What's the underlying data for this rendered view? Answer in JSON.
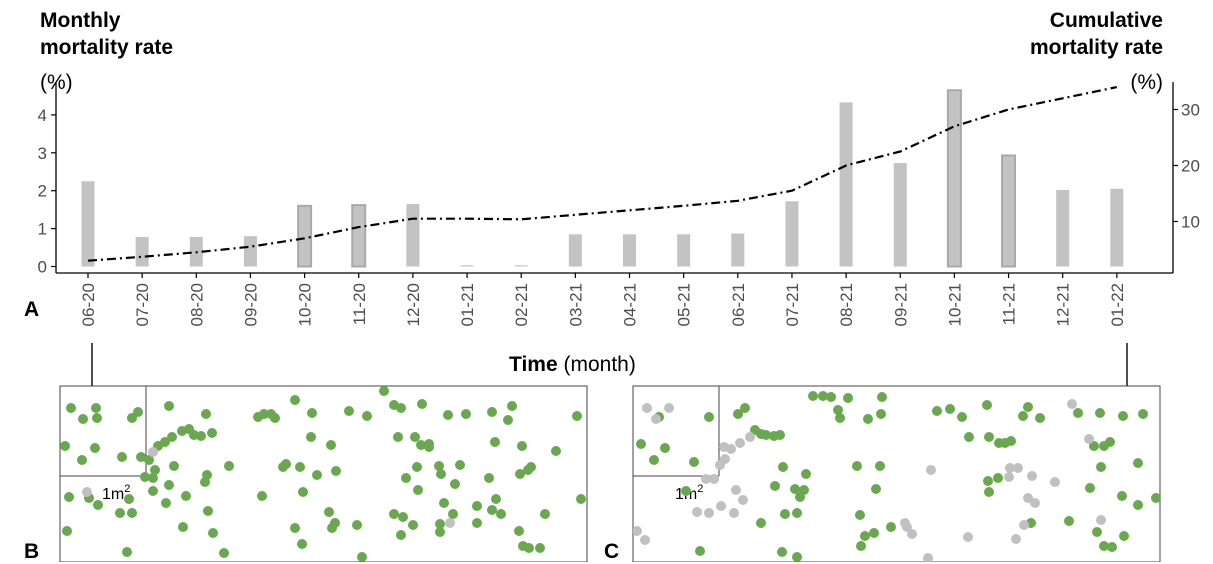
{
  "figure": {
    "left_title_line1": "Monthly",
    "left_title_line2": "mortality rate",
    "left_unit": "(%)",
    "right_title_line1": "Cumulative",
    "right_title_line2": "mortality rate",
    "right_unit": "(%)",
    "xaxis_title_bold": "Time",
    "xaxis_title_rest": " (month)",
    "panel_a": "A",
    "panel_b": "B",
    "panel_c": "C",
    "quadrat_label": "1m",
    "quadrat_sup": "2"
  },
  "colors": {
    "bar_fill": "#c3c3c3",
    "bar_outline": "#a9a9a9",
    "line": "#000000",
    "alive": "#6aa84f",
    "dead": "#c0c0c0",
    "tick_text": "#4d4d4d"
  },
  "chart_data": {
    "type": "bar",
    "categories": [
      "06-20",
      "07-20",
      "08-20",
      "09-20",
      "10-20",
      "11-20",
      "12-20",
      "01-21",
      "02-21",
      "03-21",
      "04-21",
      "05-21",
      "06-21",
      "07-21",
      "08-21",
      "09-21",
      "10-21",
      "11-21",
      "12-21",
      "01-22"
    ],
    "series": [
      {
        "type": "bar",
        "axis": "left",
        "values": [
          2.25,
          0.78,
          0.78,
          0.8,
          1.6,
          1.62,
          1.65,
          0.03,
          0.03,
          0.85,
          0.85,
          0.85,
          0.87,
          1.72,
          4.33,
          2.73,
          4.65,
          2.93,
          2.02,
          2.05
        ]
      },
      {
        "type": "line",
        "axis": "right",
        "style": "dash-dot",
        "values": [
          3,
          3.7,
          4.5,
          5.5,
          7,
          9,
          10.5,
          10.5,
          10.4,
          11.2,
          12,
          12.8,
          13.7,
          15.5,
          20,
          22.5,
          27,
          30,
          32,
          34
        ]
      }
    ],
    "outlined_bars": [
      "10-20",
      "11-20",
      "10-21",
      "11-21"
    ],
    "ylim_left": [
      0,
      4.7
    ],
    "yticks_left": [
      0,
      1,
      2,
      3,
      4
    ],
    "ylim_right": [
      1.3,
      34.8
    ],
    "yticks_right": [
      10,
      20,
      30
    ],
    "grid": false,
    "legend": "none"
  },
  "maps": {
    "panel_b": {
      "alive": [
        [
          71,
          408
        ],
        [
          83,
          419
        ],
        [
          96,
          408
        ],
        [
          97,
          418
        ],
        [
          65,
          446
        ],
        [
          82,
          460
        ],
        [
          95,
          448
        ],
        [
          122,
          457
        ],
        [
          69,
          497
        ],
        [
          89,
          498
        ],
        [
          98,
          505
        ],
        [
          120,
          513
        ],
        [
          132,
          513
        ],
        [
          129,
          499
        ],
        [
          141,
          457
        ],
        [
          145,
          477
        ],
        [
          132,
          418
        ],
        [
          138,
          412
        ],
        [
          127,
          552
        ],
        [
          67,
          531
        ],
        [
          153,
          478
        ],
        [
          155,
          470
        ],
        [
          153,
          491
        ],
        [
          149,
          460
        ],
        [
          169,
          406
        ],
        [
          158,
          446
        ],
        [
          165,
          442
        ],
        [
          172,
          437
        ],
        [
          182,
          431
        ],
        [
          189,
          429
        ],
        [
          194,
          435
        ],
        [
          206,
          414
        ],
        [
          212,
          433
        ],
        [
          201,
          436
        ],
        [
          174,
          466
        ],
        [
          169,
          485
        ],
        [
          166,
          503
        ],
        [
          186,
          496
        ],
        [
          183,
          527
        ],
        [
          208,
          511
        ],
        [
          205,
          482
        ],
        [
          213,
          533
        ],
        [
          224,
          553
        ],
        [
          229,
          466
        ],
        [
          207,
          475
        ],
        [
          264,
          414
        ],
        [
          258,
          417
        ],
        [
          271,
          414
        ],
        [
          275,
          418
        ],
        [
          295,
          400
        ],
        [
          312,
          413
        ],
        [
          300,
          467
        ],
        [
          283,
          467
        ],
        [
          286,
          464
        ],
        [
          303,
          492
        ],
        [
          262,
          496
        ],
        [
          317,
          475
        ],
        [
          311,
          437
        ],
        [
          331,
          445
        ],
        [
          336,
          471
        ],
        [
          329,
          512
        ],
        [
          335,
          523
        ],
        [
          332,
          528
        ],
        [
          295,
          528
        ],
        [
          302,
          544
        ],
        [
          349,
          411
        ],
        [
          367,
          416
        ],
        [
          384,
          391
        ],
        [
          394,
          405
        ],
        [
          357,
          525
        ],
        [
          362,
          557
        ],
        [
          401,
          408
        ],
        [
          422,
          404
        ],
        [
          398,
          437
        ],
        [
          415,
          437
        ],
        [
          429,
          447
        ],
        [
          421,
          445
        ],
        [
          429,
          444
        ],
        [
          448,
          415
        ],
        [
          466,
          414
        ],
        [
          417,
          467
        ],
        [
          406,
          478
        ],
        [
          418,
          490
        ],
        [
          439,
          466
        ],
        [
          441,
          474
        ],
        [
          444,
          503
        ],
        [
          403,
          517
        ],
        [
          401,
          535
        ],
        [
          394,
          514
        ],
        [
          413,
          525
        ],
        [
          460,
          465
        ],
        [
          455,
          484
        ],
        [
          453,
          514
        ],
        [
          440,
          524
        ],
        [
          440,
          532
        ],
        [
          492,
          412
        ],
        [
          512,
          406
        ],
        [
          508,
          420
        ],
        [
          495,
          442
        ],
        [
          522,
          446
        ],
        [
          520,
          474
        ],
        [
          528,
          470
        ],
        [
          531,
          467
        ],
        [
          489,
          478
        ],
        [
          496,
          499
        ],
        [
          492,
          510
        ],
        [
          501,
          514
        ],
        [
          477,
          506
        ],
        [
          477,
          523
        ],
        [
          519,
          531
        ],
        [
          523,
          546
        ],
        [
          529,
          548
        ],
        [
          540,
          548
        ],
        [
          545,
          514
        ],
        [
          556,
          451
        ],
        [
          577,
          416
        ],
        [
          581,
          499
        ]
      ],
      "dead": [
        [
          87,
          492
        ],
        [
          153,
          452
        ],
        [
          450,
          523
        ]
      ]
    },
    "panel_c": {
      "alive": [
        [
          641,
          444
        ],
        [
          654,
          460
        ],
        [
          665,
          448
        ],
        [
          659,
          417
        ],
        [
          709,
          417
        ],
        [
          694,
          462
        ],
        [
          686,
          491
        ],
        [
          700,
          551
        ],
        [
          745,
          408
        ],
        [
          738,
          414
        ],
        [
          755,
          430
        ],
        [
          766,
          435
        ],
        [
          774,
          436
        ],
        [
          761,
          434
        ],
        [
          780,
          435
        ],
        [
          813,
          396
        ],
        [
          823,
          396
        ],
        [
          831,
          397
        ],
        [
          840,
          418
        ],
        [
          838,
          410
        ],
        [
          848,
          398
        ],
        [
          868,
          419
        ],
        [
          882,
          397
        ],
        [
          881,
          414
        ],
        [
          783,
          467
        ],
        [
          775,
          486
        ],
        [
          795,
          489
        ],
        [
          806,
          474
        ],
        [
          804,
          490
        ],
        [
          800,
          497
        ],
        [
          785,
          514
        ],
        [
          797,
          513
        ],
        [
          761,
          523
        ],
        [
          782,
          552
        ],
        [
          797,
          557
        ],
        [
          857,
          466
        ],
        [
          880,
          466
        ],
        [
          860,
          515
        ],
        [
          876,
          489
        ],
        [
          891,
          527
        ],
        [
          874,
          533
        ],
        [
          865,
          536
        ],
        [
          861,
          546
        ],
        [
          937,
          411
        ],
        [
          950,
          409
        ],
        [
          962,
          417
        ],
        [
          987,
          405
        ],
        [
          969,
          437
        ],
        [
          989,
          437
        ],
        [
          999,
          443
        ],
        [
          1005,
          443
        ],
        [
          1011,
          441
        ],
        [
          988,
          481
        ],
        [
          989,
          492
        ],
        [
          998,
          478
        ],
        [
          1023,
          416
        ],
        [
          1028,
          407
        ],
        [
          1040,
          418
        ],
        [
          1078,
          413
        ],
        [
          1100,
          413
        ],
        [
          1123,
          416
        ],
        [
          1143,
          414
        ],
        [
          1094,
          446
        ],
        [
          1104,
          446
        ],
        [
          1110,
          442
        ],
        [
          1138,
          463
        ],
        [
          1101,
          467
        ],
        [
          1090,
          488
        ],
        [
          1122,
          496
        ],
        [
          1138,
          505
        ],
        [
          1069,
          521
        ],
        [
          1097,
          532
        ],
        [
          1124,
          536
        ],
        [
          1112,
          547
        ],
        [
          1104,
          546
        ],
        [
          1156,
          498
        ],
        [
          1031,
          523
        ]
      ],
      "dead": [
        [
          647,
          408
        ],
        [
          656,
          419
        ],
        [
          669,
          408
        ],
        [
          637,
          531
        ],
        [
          645,
          540
        ],
        [
          697,
          512
        ],
        [
          709,
          513
        ],
        [
          706,
          479
        ],
        [
          714,
          479
        ],
        [
          720,
          465
        ],
        [
          725,
          459
        ],
        [
          724,
          447
        ],
        [
          731,
          449
        ],
        [
          740,
          443
        ],
        [
          750,
          437
        ],
        [
          721,
          506
        ],
        [
          736,
          490
        ],
        [
          743,
          500
        ],
        [
          734,
          513
        ],
        [
          931,
          470
        ],
        [
          905,
          523
        ],
        [
          907,
          527
        ],
        [
          912,
          534
        ],
        [
          928,
          558
        ],
        [
          968,
          537
        ],
        [
          1016,
          539
        ],
        [
          1024,
          525
        ],
        [
          1035,
          503
        ],
        [
          1028,
          498
        ],
        [
          1032,
          476
        ],
        [
          1055,
          482
        ],
        [
          1010,
          468
        ],
        [
          1018,
          468
        ],
        [
          1009,
          477
        ],
        [
          1072,
          404
        ],
        [
          1089,
          439
        ],
        [
          1101,
          520
        ]
      ]
    }
  }
}
